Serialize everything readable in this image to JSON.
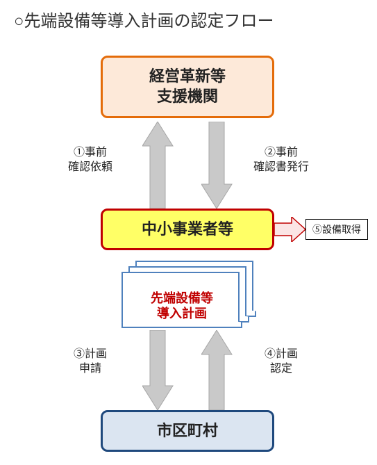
{
  "title": "○先端設備等導入計画の認定フロー",
  "boxes": {
    "top": {
      "text": "経営革新等\n支援機関",
      "bg": "#fde9d9",
      "border": "#e46c0a"
    },
    "mid": {
      "text": "中小事業者等",
      "bg": "#ffff66",
      "border": "#c00000"
    },
    "bot": {
      "text": "市区町村",
      "bg": "#dbe5f1",
      "border": "#1f497d"
    },
    "right": {
      "text": "⑤設備取得"
    }
  },
  "document": {
    "text": "先端設備等\n導入計画",
    "color": "#c00000",
    "border": "#4f81bd"
  },
  "labels": {
    "l1": "①事前\n確認依頼",
    "l2": "②事前\n確認書発行",
    "l3": "③計画\n申請",
    "l4": "④計画\n認定"
  },
  "arrows": {
    "gray": "#c9c9c9",
    "grayStroke": "#a6a6a6",
    "pink": "#f2a0a0",
    "pinkFill": "#fbe5e5",
    "pinkStroke": "#c00000"
  }
}
